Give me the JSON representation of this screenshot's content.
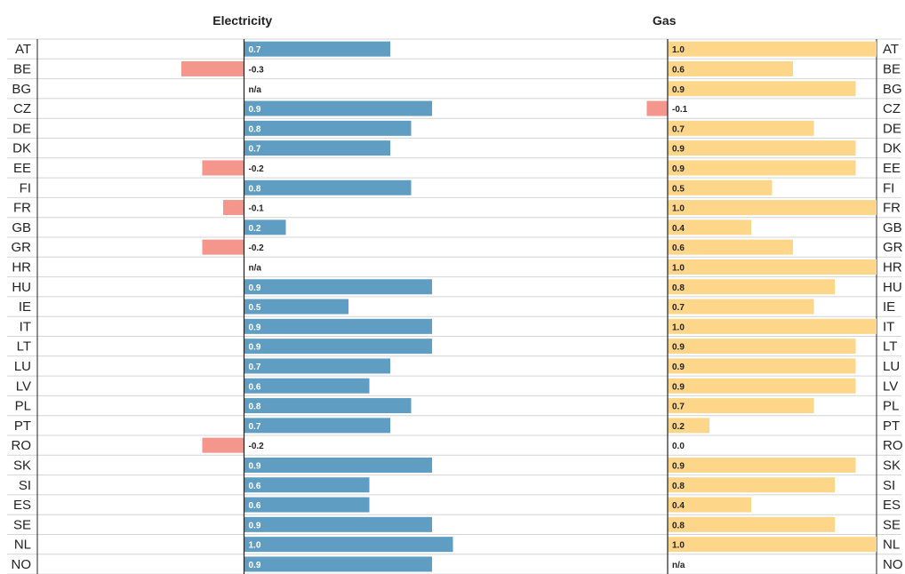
{
  "colors": {
    "electricity_positive": "#5f9ec2",
    "electricity_negative": "#f4968c",
    "gas_positive": "#fdd68a",
    "gas_negative": "#f4968c",
    "row_separator": "#d4d4d4",
    "axis": "#222222"
  },
  "chart_data": {
    "type": "bar",
    "orientation": "horizontal",
    "categories": [
      "AT",
      "BE",
      "BG",
      "CZ",
      "DE",
      "DK",
      "EE",
      "FI",
      "FR",
      "GB",
      "GR",
      "HR",
      "HU",
      "IE",
      "IT",
      "LT",
      "LU",
      "LV",
      "PL",
      "PT",
      "RO",
      "SK",
      "SI",
      "ES",
      "SE",
      "NL",
      "NO"
    ],
    "missing_label": "n/a",
    "xlim": [
      -0.7,
      1.0
    ],
    "grid": false,
    "legend": "none",
    "panels": [
      {
        "title": "Electricity",
        "values": [
          0.7,
          -0.3,
          null,
          0.9,
          0.8,
          0.7,
          -0.2,
          0.8,
          -0.1,
          0.2,
          -0.2,
          null,
          0.9,
          0.5,
          0.9,
          0.9,
          0.7,
          0.6,
          0.8,
          0.7,
          -0.2,
          0.9,
          0.6,
          0.6,
          0.9,
          1.0,
          0.9
        ],
        "labels": [
          "0.7",
          "-0.3",
          "n/a",
          "0.9",
          "0.8",
          "0.7",
          "-0.2",
          "0.8",
          "-0.1",
          "0.2",
          "-0.2",
          "n/a",
          "0.9",
          "0.5",
          "0.9",
          "0.9",
          "0.7",
          "0.6",
          "0.8",
          "0.7",
          "-0.2",
          "0.9",
          "0.6",
          "0.6",
          "0.9",
          "1.0",
          "0.9"
        ]
      },
      {
        "title": "Gas",
        "values": [
          1.0,
          0.6,
          0.9,
          -0.1,
          0.7,
          0.9,
          0.9,
          0.5,
          1.0,
          0.4,
          0.6,
          1.0,
          0.8,
          0.7,
          1.0,
          0.9,
          0.9,
          0.9,
          0.7,
          0.2,
          0.0,
          0.9,
          0.8,
          0.4,
          0.8,
          1.0,
          null
        ],
        "labels": [
          "1.0",
          "0.6",
          "0.9",
          "-0.1",
          "0.7",
          "0.9",
          "0.9",
          "0.5",
          "1.0",
          "0.4",
          "0.6",
          "1.0",
          "0.8",
          "0.7",
          "1.0",
          "0.9",
          "0.9",
          "0.9",
          "0.7",
          "0.2",
          "0.0",
          "0.9",
          "0.8",
          "0.4",
          "0.8",
          "1.0",
          "n/a"
        ]
      }
    ]
  }
}
